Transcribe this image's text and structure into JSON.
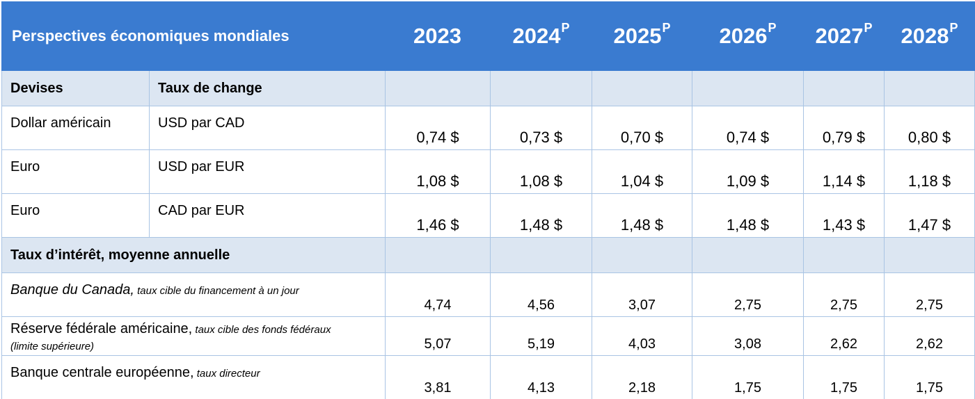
{
  "header": {
    "title": "Perspectives économiques mondiales",
    "years": [
      {
        "year": "2023",
        "sup": ""
      },
      {
        "year": "2024",
        "sup": "P"
      },
      {
        "year": "2025",
        "sup": "P"
      },
      {
        "year": "2026",
        "sup": "P"
      },
      {
        "year": "2027",
        "sup": "P"
      },
      {
        "year": "2028",
        "sup": "P"
      }
    ]
  },
  "currencies": {
    "section_label_1": "Devises",
    "section_label_2": "Taux de change",
    "rows": [
      {
        "name": "Dollar américain",
        "unit": "USD par CAD",
        "values": [
          "0,74 $",
          "0,73 $",
          "0,70 $",
          "0,74 $",
          "0,79 $",
          "0,80 $"
        ]
      },
      {
        "name": "Euro",
        "unit": "USD par EUR",
        "values": [
          "1,08 $",
          "1,08 $",
          "1,04 $",
          "1,09 $",
          "1,14 $",
          "1,18 $"
        ]
      },
      {
        "name": "Euro",
        "unit": "CAD par EUR",
        "values": [
          "1,46 $",
          "1,48 $",
          "1,48 $",
          "1,48 $",
          "1,43 $",
          "1,47 $"
        ]
      }
    ]
  },
  "interest": {
    "section_label": "Taux d’intérêt, moyenne annuelle",
    "rows": [
      {
        "name": "Banque du Canada,",
        "note": " taux cible du financement à un jour",
        "values": [
          "4,74",
          "4,56",
          "3,07",
          "2,75",
          "2,75",
          "2,75"
        ]
      },
      {
        "name": "Réserve fédérale américaine,",
        "note": " taux cible des fonds fédéraux",
        "note2": "(limite supérieure)",
        "values": [
          "5,07",
          "5,19",
          "4,03",
          "3,08",
          "2,62",
          "2,62"
        ]
      },
      {
        "name": "Banque centrale européenne,",
        "note": " taux directeur",
        "values": [
          "3,81",
          "4,13",
          "2,18",
          "1,75",
          "1,75",
          "1,75"
        ]
      }
    ]
  }
}
